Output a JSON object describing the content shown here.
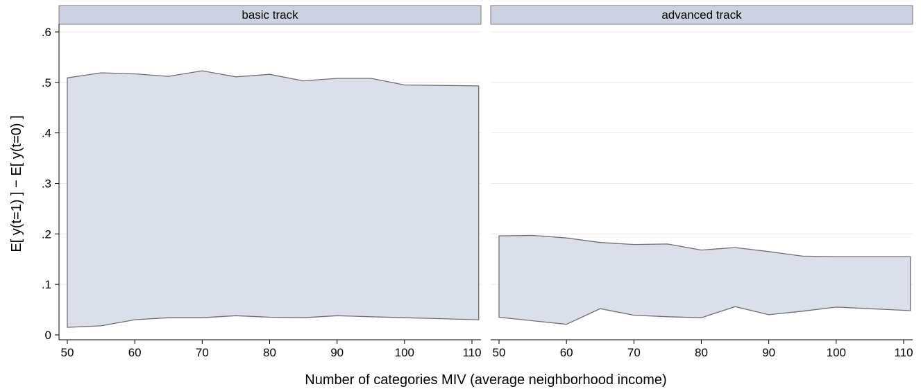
{
  "chart_data": {
    "type": "area",
    "ylabel": "E[ y(t=1) ] − E[ y(t=0) ]",
    "xlabel": "Number of categories MIV (average neighborhood income)",
    "ylim": [
      0,
      0.6
    ],
    "y_ticks": [
      0,
      0.1,
      0.2,
      0.3,
      0.4,
      0.5,
      0.6
    ],
    "y_tick_labels": [
      "0",
      ".1",
      ".2",
      ".3",
      ".4",
      ".5",
      ".6"
    ],
    "x_ticks": [
      50,
      60,
      70,
      80,
      90,
      100,
      110
    ],
    "x_tick_labels": [
      "50",
      "60",
      "70",
      "80",
      "90",
      "100",
      "110"
    ],
    "xlim": [
      49,
      112
    ],
    "grid": true,
    "fill_color": "#dbdfe9",
    "line_color": "#6e6e6e",
    "header_color": "#ccd2e2",
    "panels": [
      {
        "title": "basic track",
        "x": [
          50,
          55,
          60,
          65,
          70,
          75,
          80,
          85,
          90,
          95,
          100,
          111
        ],
        "upper": [
          0.509,
          0.519,
          0.517,
          0.512,
          0.523,
          0.511,
          0.516,
          0.503,
          0.508,
          0.508,
          0.495,
          0.493
        ],
        "lower": [
          0.015,
          0.018,
          0.03,
          0.034,
          0.034,
          0.038,
          0.035,
          0.034,
          0.038,
          0.036,
          0.034,
          0.03
        ]
      },
      {
        "title": "advanced track",
        "x": [
          50,
          55,
          60,
          65,
          70,
          75,
          80,
          85,
          90,
          95,
          100,
          111
        ],
        "upper": [
          0.196,
          0.197,
          0.192,
          0.183,
          0.179,
          0.18,
          0.168,
          0.173,
          0.165,
          0.156,
          0.155,
          0.155
        ],
        "lower": [
          0.035,
          0.028,
          0.021,
          0.052,
          0.039,
          0.036,
          0.034,
          0.056,
          0.04,
          0.047,
          0.055,
          0.048
        ]
      }
    ]
  }
}
